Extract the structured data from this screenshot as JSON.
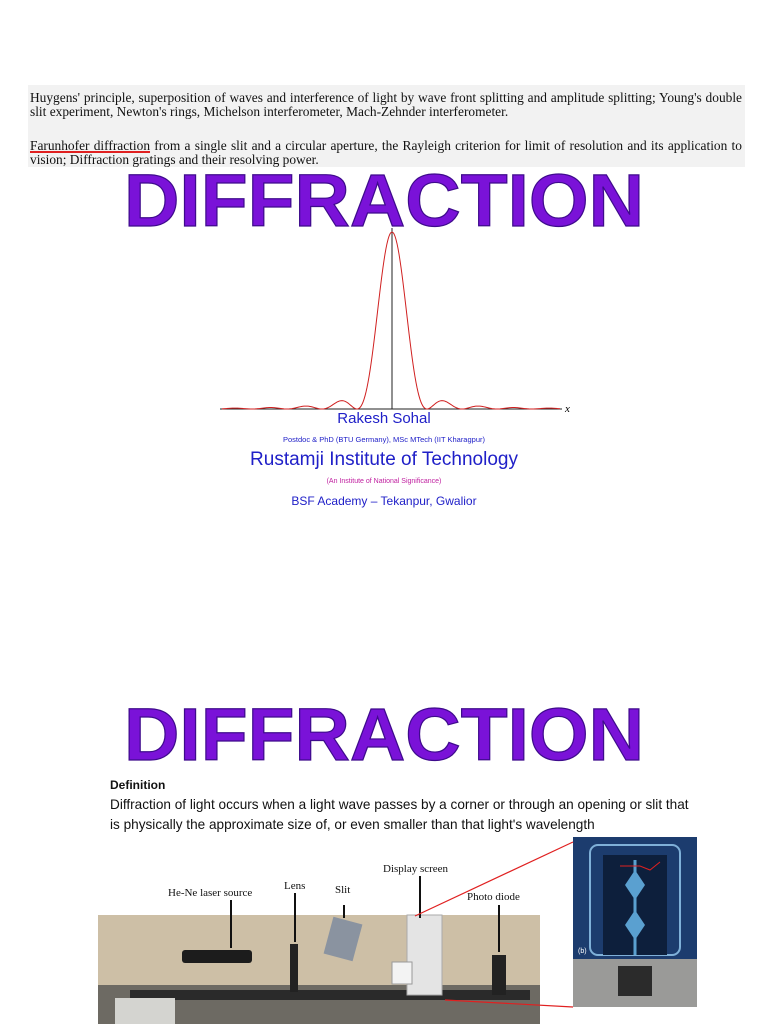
{
  "slide1": {
    "syllabus_1": "Huygens' principle, superposition of waves and interference of light by wave front splitting and amplitude splitting; Young's double slit experiment, Newton's rings, Michelson interferometer, Mach-Zehnder interferometer.",
    "syllabus_2_highlight": "Farunhofer diffraction",
    "syllabus_2": "from a single slit and a circular aperture, the Rayleigh criterion for limit of resolution and its application to vision; Diffraction gratings and their resolving power.",
    "title": "DIFFRACTION",
    "axis_label": "x",
    "author": "Rakesh Sohal",
    "credentials": "Postdoc & PhD (BTU Germany), MSc MTech (IIT Kharagpur)",
    "institute": "Rustamji Institute of Technology",
    "institute_note": "(An Institute of National Significance)",
    "location": "BSF Academy – Tekanpur, Gwalior"
  },
  "slide2": {
    "title": "DIFFRACTION",
    "definition_heading": "Definition",
    "definition": "Diffraction of light occurs when a light wave passes by a corner or through an opening or slit that is physically the approximate size of, or even smaller than that light's wavelength",
    "figure_labels": [
      "He-Ne laser source",
      "Lens",
      "Slit",
      "Display screen",
      "Photo diode"
    ],
    "inset_label": "(b)"
  }
}
